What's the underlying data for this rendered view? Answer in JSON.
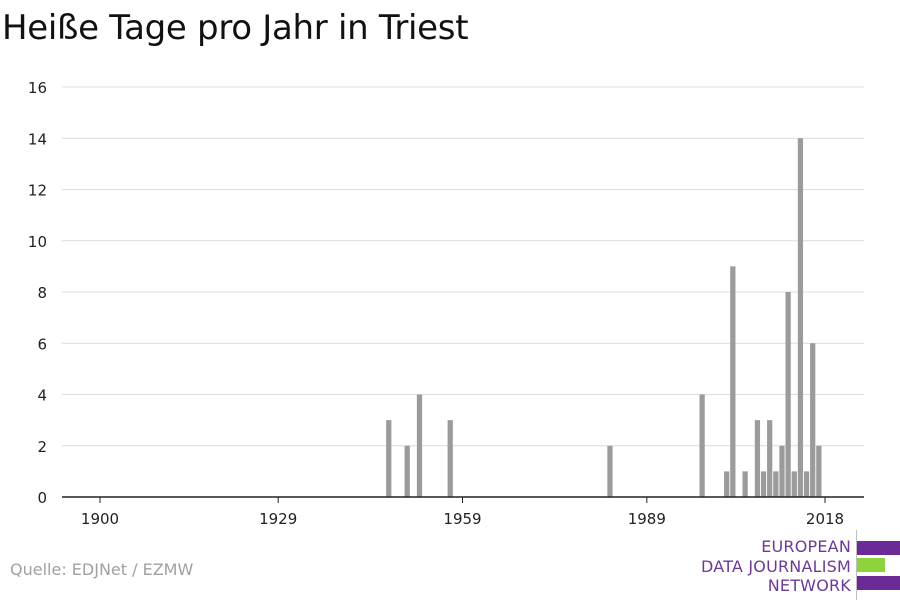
{
  "title": "Heiße Tage pro Jahr in Triest",
  "source": "Quelle: EDJNet / EZMW",
  "logo": {
    "lines": [
      "EUROPEAN",
      "DATA JOURNALISM",
      "NETWORK"
    ],
    "colors": [
      "#6b2a95",
      "#8ed23c",
      "#6b2a95"
    ]
  },
  "colors": {
    "bar": "#9b9b9b",
    "grid": "#dcdcdc",
    "axis": "#222222",
    "text": "#222222"
  },
  "chart_data": {
    "type": "bar",
    "title": "Heiße Tage pro Jahr in Triest",
    "xlabel": "",
    "ylabel": "",
    "xlim": [
      1895,
      2024
    ],
    "ylim": [
      0,
      16
    ],
    "grid": true,
    "xticks": [
      1900,
      1929,
      1959,
      1989,
      2018
    ],
    "yticks": [
      0,
      2,
      4,
      6,
      8,
      10,
      12,
      14,
      16
    ],
    "x": [
      1947,
      1950,
      1952,
      1957,
      1983,
      1998,
      2002,
      2003,
      2005,
      2007,
      2008,
      2009,
      2010,
      2011,
      2012,
      2013,
      2014,
      2015,
      2016,
      2017,
      2018
    ],
    "values": [
      3,
      2,
      4,
      3,
      2,
      4,
      1,
      9,
      1,
      3,
      1,
      3,
      1,
      2,
      8,
      1,
      14,
      1,
      6,
      2,
      0
    ]
  }
}
